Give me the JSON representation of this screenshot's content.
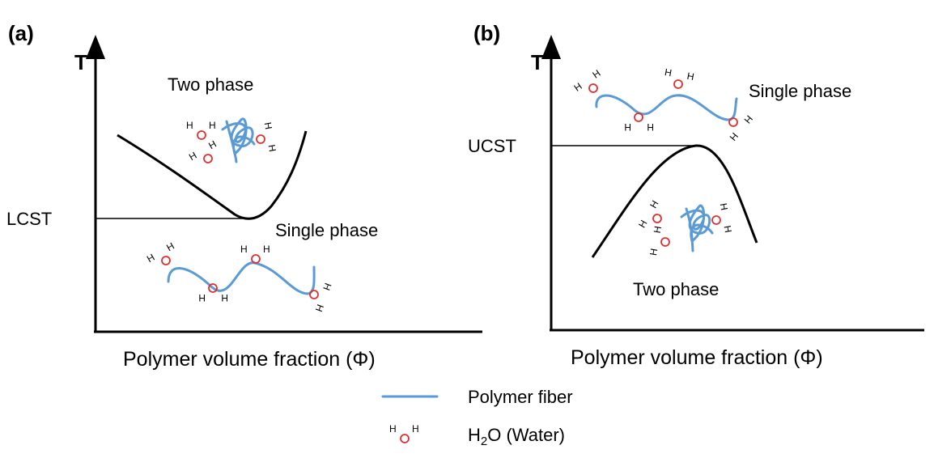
{
  "panel_a": {
    "label": "(a)",
    "y_axis": "T",
    "upper_region": "Two phase",
    "critical_line": "LCST",
    "lower_region": "Single phase",
    "x_axis": "Polymer volume fraction (Φ)"
  },
  "panel_b": {
    "label": "(b)",
    "y_axis": "T",
    "upper_region": "Single phase",
    "critical_line": "UCST",
    "lower_region": "Two phase",
    "x_axis": "Polymer volume fraction (Φ)"
  },
  "legend": {
    "fiber": "Polymer fiber",
    "hydrogen": "H",
    "water": {
      "prefix": "H",
      "subscript": "2",
      "suffix": "O (Water)"
    }
  }
}
